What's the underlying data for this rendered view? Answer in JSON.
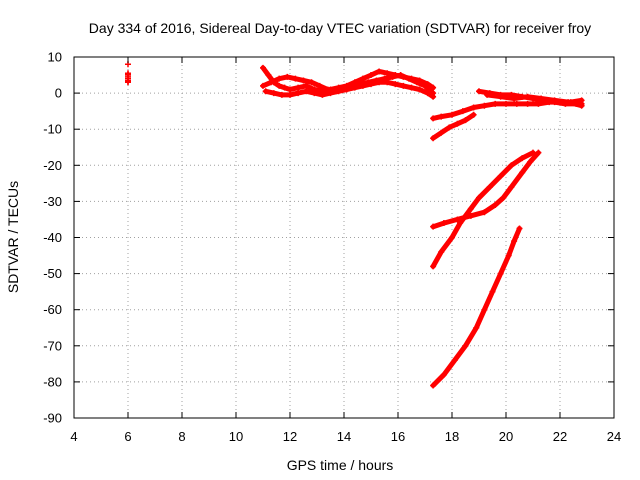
{
  "chart_data": {
    "type": "scatter",
    "title": "Day 334 of 2016, Sidereal Day-to-day VTEC variation (SDTVAR) for receiver froy",
    "xlabel": "GPS time / hours",
    "ylabel": "SDTVAR / TECUs",
    "xlim": [
      4,
      24
    ],
    "ylim": [
      -90,
      10
    ],
    "xticks": [
      4,
      6,
      8,
      10,
      12,
      14,
      16,
      18,
      20,
      22,
      24
    ],
    "yticks": [
      10,
      0,
      -10,
      -20,
      -30,
      -40,
      -50,
      -60,
      -70,
      -80,
      -90
    ],
    "grid": true,
    "color": "#ff0000",
    "series": [
      {
        "style": "points",
        "x": [
          6.0,
          6.0,
          6.0,
          6.0,
          6.0,
          6.0,
          6.0,
          6.0,
          6.0
        ],
        "y": [
          8.0,
          5.5,
          5.0,
          4.5,
          4.0,
          3.5,
          3.2,
          3.0,
          5.2
        ]
      },
      {
        "x": [
          11.0,
          11.2,
          11.4,
          11.6,
          11.8,
          12.0,
          12.3,
          12.6,
          12.9,
          13.2,
          13.5,
          13.8,
          14.1,
          14.4,
          14.7,
          15.0,
          15.3,
          15.6,
          15.9,
          16.2,
          16.5,
          16.8,
          17.1,
          17.3
        ],
        "y": [
          7.0,
          5.0,
          3.0,
          2.0,
          1.5,
          1.0,
          1.5,
          2.0,
          1.0,
          0.5,
          1.0,
          1.5,
          2.0,
          3.0,
          4.0,
          5.0,
          6.0,
          5.5,
          5.0,
          4.5,
          4.0,
          3.5,
          2.5,
          1.5
        ]
      },
      {
        "x": [
          11.0,
          11.3,
          11.6,
          11.9,
          12.2,
          12.5,
          12.8,
          13.1,
          13.4,
          13.7,
          14.0,
          14.3,
          14.6,
          14.9,
          15.2,
          15.5,
          15.8,
          16.1,
          16.4,
          16.7,
          17.0,
          17.3
        ],
        "y": [
          2.0,
          3.0,
          4.0,
          4.5,
          4.0,
          3.5,
          3.0,
          2.0,
          1.0,
          0.5,
          1.0,
          2.0,
          2.5,
          3.0,
          3.5,
          4.0,
          4.5,
          5.0,
          4.0,
          3.0,
          2.0,
          0.0
        ]
      },
      {
        "x": [
          11.1,
          11.4,
          11.7,
          12.0,
          12.3,
          12.6,
          12.9,
          13.2,
          13.5,
          13.8,
          14.1,
          14.4,
          14.7,
          15.0,
          15.3,
          15.6,
          15.9,
          16.2,
          16.5,
          16.8,
          17.1,
          17.3
        ],
        "y": [
          0.5,
          0.0,
          -0.5,
          -0.5,
          0.0,
          0.5,
          0.0,
          -0.5,
          0.0,
          0.5,
          1.0,
          1.5,
          2.0,
          2.5,
          3.0,
          3.0,
          2.5,
          2.0,
          1.5,
          1.0,
          0.0,
          -1.0
        ]
      },
      {
        "x": [
          17.3,
          17.6,
          18.0,
          18.4,
          18.8,
          19.2,
          19.6,
          20.0,
          20.4,
          20.8,
          21.2,
          21.6,
          22.0,
          22.4,
          22.8
        ],
        "y": [
          -7.0,
          -6.5,
          -6.0,
          -5.0,
          -4.0,
          -3.5,
          -3.0,
          -3.0,
          -3.0,
          -3.0,
          -3.0,
          -2.5,
          -2.5,
          -2.5,
          -2.0
        ]
      },
      {
        "x": [
          19.0,
          19.4,
          19.8,
          20.2,
          20.6,
          21.0,
          21.4,
          21.8,
          22.2,
          22.6,
          22.8
        ],
        "y": [
          0.5,
          0.0,
          -0.5,
          -0.5,
          -1.0,
          -1.5,
          -2.0,
          -2.5,
          -3.0,
          -3.0,
          -3.0
        ]
      },
      {
        "x": [
          19.3,
          19.8,
          20.3,
          20.8,
          21.3,
          21.8,
          22.3,
          22.8
        ],
        "y": [
          -0.5,
          -1.0,
          -1.5,
          -1.0,
          -1.5,
          -2.0,
          -2.5,
          -3.5
        ]
      },
      {
        "x": [
          17.3,
          17.6,
          17.9,
          18.2,
          18.5,
          18.8
        ],
        "y": [
          -12.5,
          -11.0,
          -9.5,
          -8.5,
          -7.5,
          -6.0
        ]
      },
      {
        "x": [
          17.3,
          17.6,
          18.0,
          18.3,
          18.7,
          19.0,
          19.4,
          19.8,
          20.2,
          20.6,
          21.0
        ],
        "y": [
          -48.0,
          -44.0,
          -40.0,
          -36.0,
          -32.0,
          -29.0,
          -26.0,
          -23.0,
          -20.0,
          -18.0,
          -16.5
        ]
      },
      {
        "x": [
          17.3,
          17.7,
          18.2,
          18.7,
          19.2,
          19.6,
          19.9,
          20.2,
          20.6,
          20.9,
          21.2
        ],
        "y": [
          -37.0,
          -36.0,
          -35.0,
          -34.0,
          -33.0,
          -31.0,
          -29.0,
          -26.0,
          -22.0,
          -19.0,
          -16.5
        ]
      },
      {
        "x": [
          17.3,
          17.7,
          18.1,
          18.5,
          18.9,
          19.2,
          19.5,
          19.8,
          20.1,
          20.3,
          20.5
        ],
        "y": [
          -81.0,
          -78.0,
          -74.0,
          -70.0,
          -65.0,
          -60.0,
          -55.0,
          -50.0,
          -45.0,
          -41.0,
          -37.5
        ]
      }
    ]
  }
}
